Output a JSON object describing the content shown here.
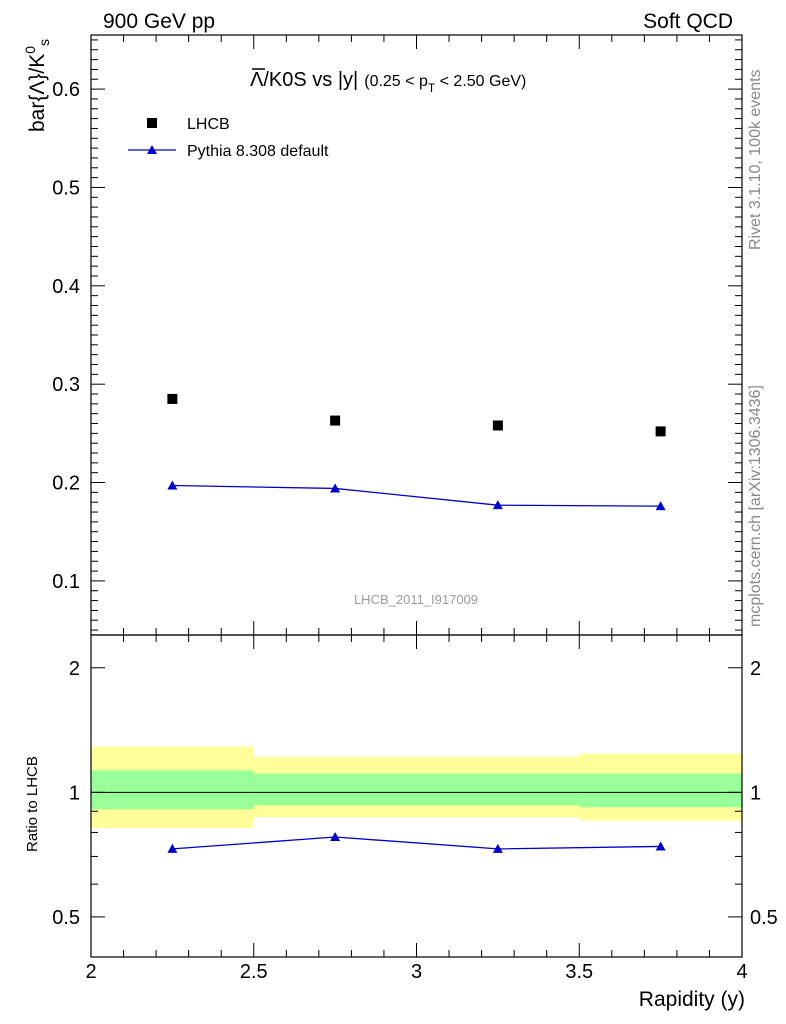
{
  "header": {
    "left": "900 GeV pp",
    "right": "Soft QCD"
  },
  "side_labels": {
    "top": "Rivet 3.1.10,  100k events",
    "bottom": "mcplots.cern.ch [arXiv:1306.3436]"
  },
  "watermark": "LHCB_2011_I917009",
  "colors": {
    "data": "#000000",
    "mc": "#0000cc",
    "band_inner": "#99ff99",
    "band_outer": "#ffff99"
  },
  "chart_data": [
    {
      "type": "scatter",
      "title_main": "Λ/K0S vs |y|",
      "title_lambda": "Λ",
      "title_rest": "/K0S vs |y|",
      "title_open": "(0.25 < p",
      "title_sub": "T",
      "title_close": " < 2.50 GeV)",
      "ylabel_main": "bar{Λ}/K",
      "ylabel_sup": "0",
      "ylabel_sub": "s",
      "xlim": [
        2.0,
        4.0
      ],
      "ylim": [
        0.045,
        0.655
      ],
      "yticks": [
        0.1,
        0.2,
        0.3,
        0.4,
        0.5,
        0.6
      ],
      "ytick_labels": [
        "0.1",
        "0.2",
        "0.3",
        "0.4",
        "0.5",
        "0.6"
      ],
      "legend_position": "top-left",
      "series": [
        {
          "name": "LHCB",
          "marker": "square",
          "x": [
            2.25,
            2.75,
            3.25,
            3.75
          ],
          "y": [
            0.285,
            0.263,
            0.258,
            0.252
          ]
        },
        {
          "name": "Pythia 8.308 default",
          "marker": "triangle",
          "x": [
            2.25,
            2.75,
            3.25,
            3.75
          ],
          "y": [
            0.197,
            0.194,
            0.177,
            0.176
          ],
          "yerr": [
            0.004,
            0.004,
            0.004,
            0.004
          ]
        }
      ]
    },
    {
      "type": "line",
      "ylabel": "Ratio to LHCB",
      "xlabel": "Rapidity (y)",
      "xlim": [
        2.0,
        4.0
      ],
      "ylim": [
        0.4,
        2.4
      ],
      "log_y": true,
      "xticks": [
        2,
        2.5,
        3,
        3.5,
        4
      ],
      "xtick_labels": [
        "2",
        "2.5",
        "3",
        "3.5",
        "4"
      ],
      "yticks": [
        0.5,
        1,
        2
      ],
      "ytick_labels": [
        "0.5",
        "1",
        "2"
      ],
      "bands": [
        {
          "x": [
            2.0,
            2.5
          ],
          "inner": [
            0.91,
            1.13
          ],
          "outer": [
            0.82,
            1.29
          ]
        },
        {
          "x": [
            2.5,
            3.0
          ],
          "inner": [
            0.93,
            1.11
          ],
          "outer": [
            0.87,
            1.22
          ]
        },
        {
          "x": [
            3.0,
            3.5
          ],
          "inner": [
            0.93,
            1.11
          ],
          "outer": [
            0.87,
            1.22
          ]
        },
        {
          "x": [
            3.5,
            4.0
          ],
          "inner": [
            0.92,
            1.11
          ],
          "outer": [
            0.855,
            1.24
          ]
        }
      ],
      "series": [
        {
          "name": "Pythia 8.308 default",
          "x": [
            2.25,
            2.75,
            3.25,
            3.75
          ],
          "y": [
            0.73,
            0.78,
            0.73,
            0.74
          ],
          "yerr": [
            0.012,
            0.012,
            0.012,
            0.014
          ]
        }
      ]
    }
  ]
}
